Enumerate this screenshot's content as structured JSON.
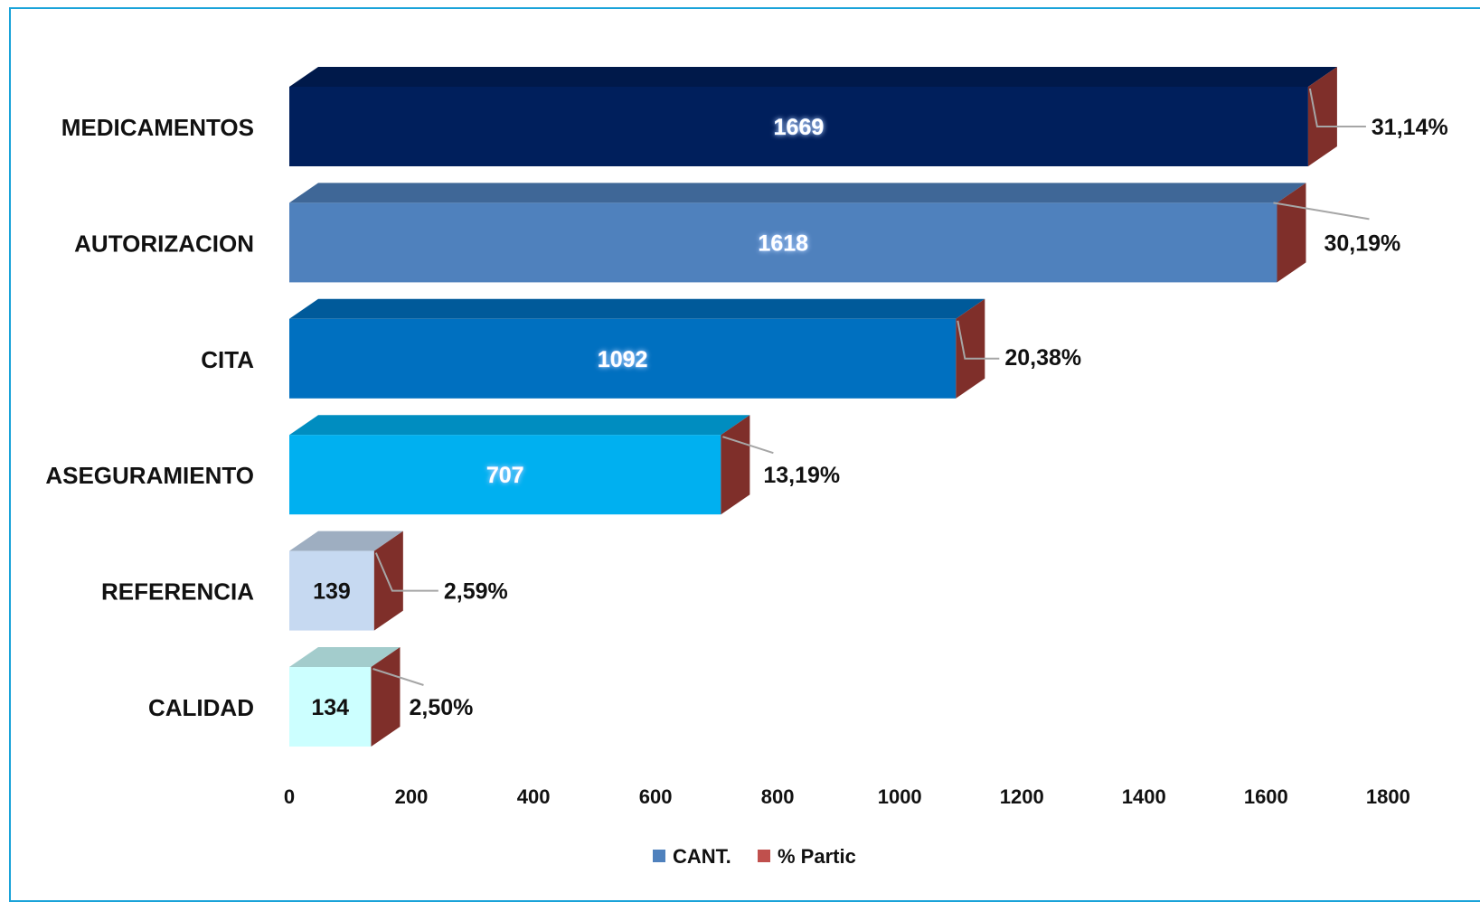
{
  "chart_data": {
    "type": "bar",
    "orientation": "horizontal",
    "categories": [
      "MEDICAMENTOS",
      "AUTORIZACION",
      "CITA",
      "ASEGURAMIENTO",
      "REFERENCIA",
      "CALIDAD"
    ],
    "series": [
      {
        "name": "CANT.",
        "values": [
          1669,
          1618,
          1092,
          707,
          139,
          134
        ],
        "value_labels": [
          "1669",
          "1618",
          "1092",
          "707",
          "139",
          "134"
        ]
      },
      {
        "name": "% Partic",
        "values": [
          31.14,
          30.19,
          20.38,
          13.19,
          2.59,
          2.5
        ],
        "value_labels": [
          "31,14%",
          "30,19%",
          "20,38%",
          "13,19%",
          "2,59%",
          "2,50%"
        ]
      }
    ],
    "bar_colors": [
      "#001f5c",
      "#4f81bd",
      "#0070c0",
      "#00b0f0",
      "#c6d9f1",
      "#ccffff"
    ],
    "value_label_colors": [
      "#ffffff",
      "#ffffff",
      "#ffffff",
      "#ffffff",
      "#111111",
      "#111111"
    ],
    "pct_color": "#7f2f2a",
    "xlim": [
      0,
      1800
    ],
    "xticks": [
      0,
      200,
      400,
      600,
      800,
      1000,
      1200,
      1400,
      1600,
      1800
    ],
    "xtick_labels": [
      "0",
      "200",
      "400",
      "600",
      "800",
      "1000",
      "1200",
      "1400",
      "1600",
      "1800"
    ],
    "grid": false,
    "legend": {
      "position": "bottom",
      "items": [
        {
          "label": "CANT.",
          "color": "#4f81bd"
        },
        {
          "label": "% Partic",
          "color": "#c0504d"
        }
      ]
    },
    "title": "",
    "xlabel": "",
    "ylabel": ""
  }
}
